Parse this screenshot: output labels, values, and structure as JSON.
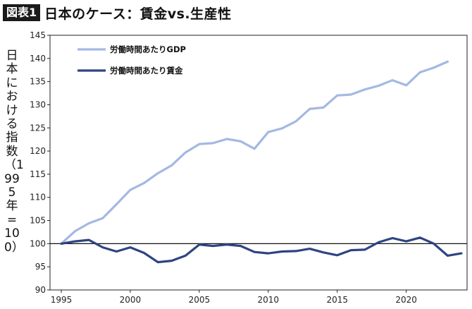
{
  "header": {
    "badge": "図表1",
    "title": "日本のケース：賃金vs.生産性"
  },
  "chart_data": {
    "type": "line",
    "title": "日本のケース：賃金vs.生産性",
    "ylabel": "日本における指数（1995年=100）",
    "xlabel": "",
    "ylim": [
      90,
      145
    ],
    "xlim": [
      1995,
      2024
    ],
    "yticks": [
      90,
      95,
      100,
      105,
      110,
      115,
      120,
      125,
      130,
      135,
      140,
      145
    ],
    "xticks": [
      1995,
      2000,
      2005,
      2010,
      2015,
      2020
    ],
    "reference_line": 100,
    "grid": false,
    "legend_position": "top-left",
    "series": [
      {
        "name": "労働時間あたりGDP",
        "color": "#a4b8e2",
        "x": [
          1995,
          1996,
          1997,
          1998,
          1999,
          2000,
          2001,
          2002,
          2003,
          2004,
          2005,
          2006,
          2007,
          2008,
          2009,
          2010,
          2011,
          2012,
          2013,
          2014,
          2015,
          2016,
          2017,
          2018,
          2019,
          2020,
          2021,
          2022,
          2023
        ],
        "values": [
          100,
          102.7,
          104.4,
          105.5,
          108.5,
          111.6,
          113.1,
          115.2,
          116.9,
          119.7,
          121.5,
          121.7,
          122.6,
          122.1,
          120.5,
          124.1,
          124.9,
          126.4,
          129.1,
          129.4,
          132.0,
          132.2,
          133.3,
          134.1,
          135.3,
          134.2,
          137.0,
          138.0,
          139.3
        ]
      },
      {
        "name": "労働時間あたり賃金",
        "color": "#2e4482",
        "x": [
          1995,
          1996,
          1997,
          1998,
          1999,
          2000,
          2001,
          2002,
          2003,
          2004,
          2005,
          2006,
          2007,
          2008,
          2009,
          2010,
          2011,
          2012,
          2013,
          2014,
          2015,
          2016,
          2017,
          2018,
          2019,
          2020,
          2021,
          2022,
          2023,
          2024
        ],
        "values": [
          100,
          100.5,
          100.8,
          99.2,
          98.3,
          99.2,
          98.0,
          96.0,
          96.3,
          97.4,
          99.8,
          99.5,
          99.8,
          99.5,
          98.2,
          97.9,
          98.3,
          98.4,
          98.9,
          98.1,
          97.5,
          98.6,
          98.7,
          100.3,
          101.2,
          100.5,
          101.3,
          100.0,
          97.4,
          97.9
        ]
      }
    ]
  }
}
